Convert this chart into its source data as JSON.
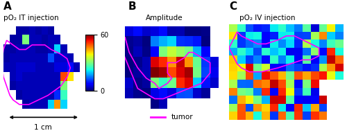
{
  "title_A": "pO₂ IT injection",
  "title_B": "Amplitude",
  "title_C": "pO₂ IV injection",
  "label_A": "A",
  "label_B": "B",
  "label_C": "C",
  "colorbar_min": 0,
  "colorbar_max": 60,
  "legend_label": "tumor",
  "scalebar_label": "1 cm",
  "bg_color": "#ffffff",
  "tumor_color": "#FF00FF",
  "cmap": "jet"
}
